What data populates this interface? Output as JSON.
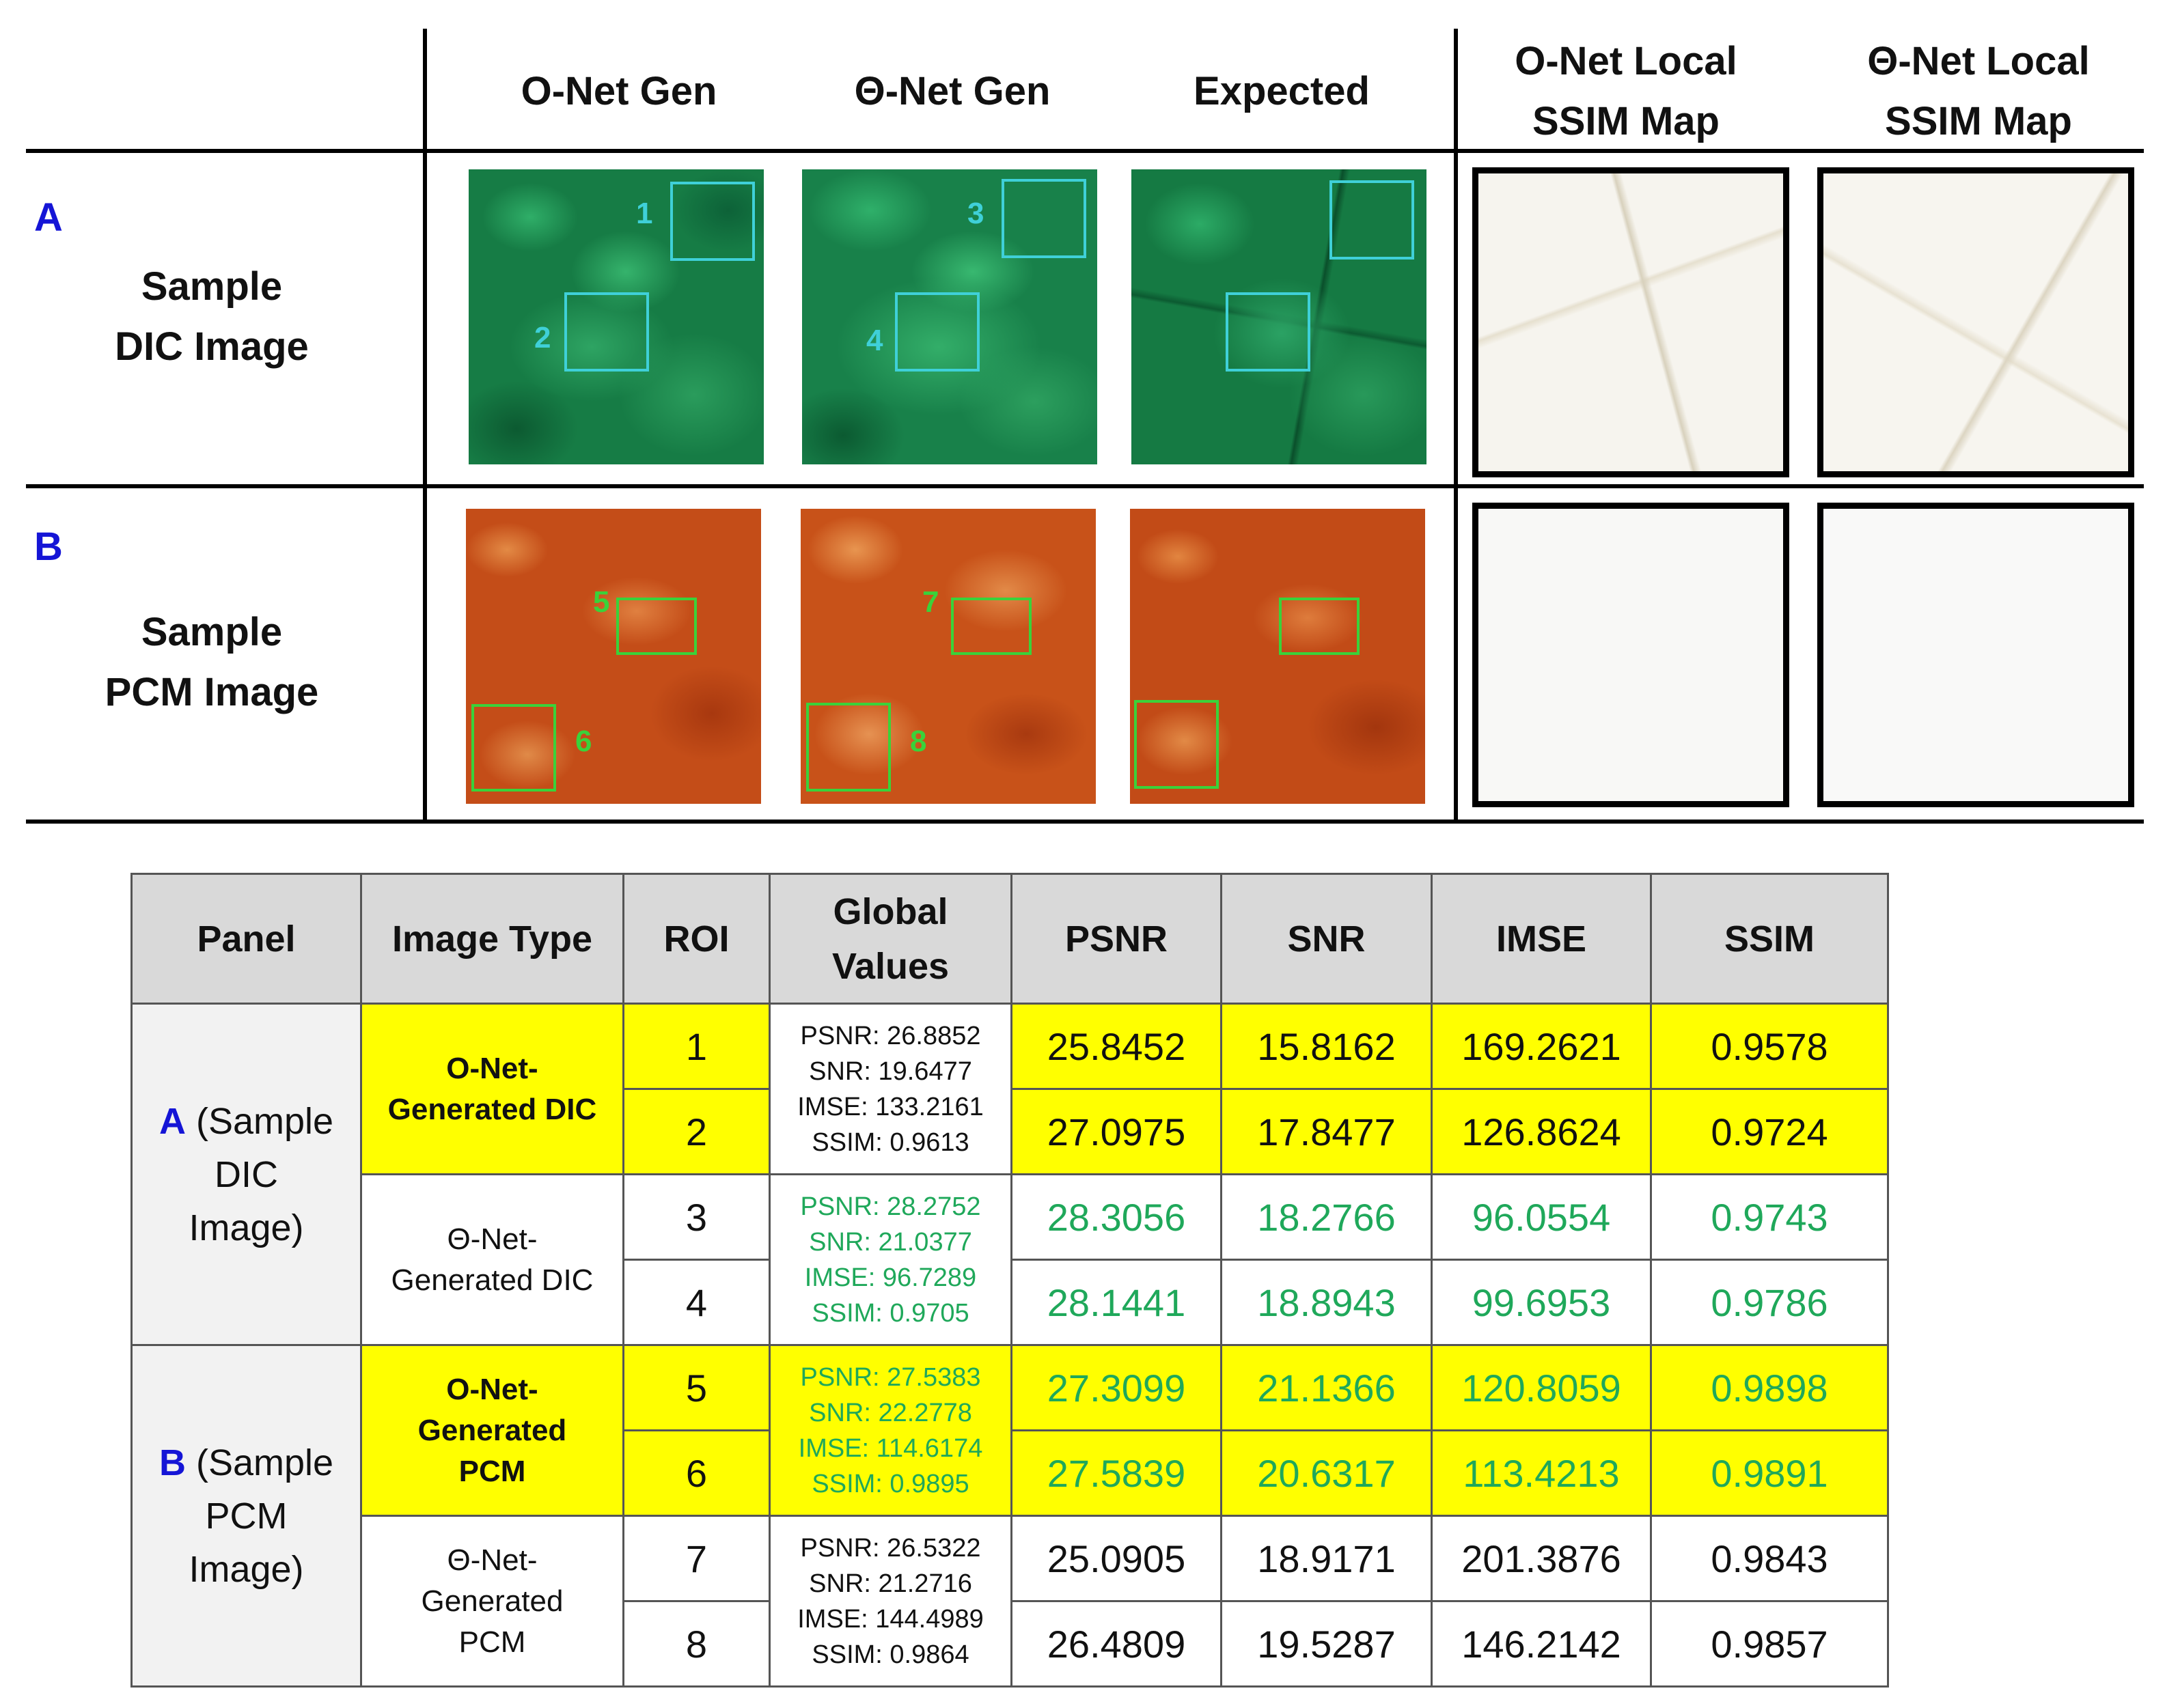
{
  "figure": {
    "col_headers": [
      "O-Net Gen",
      "Θ-Net Gen",
      "Expected",
      "O-Net Local\nSSIM Map",
      "Θ-Net Local\nSSIM Map"
    ],
    "col_o_net_gen": "O-Net Gen",
    "col_theta_net_gen": "Θ-Net Gen",
    "col_expected": "Expected",
    "col_o_ssim_1": "O-Net Local",
    "col_o_ssim_2": "SSIM Map",
    "col_t_ssim_1": "Θ-Net Local",
    "col_t_ssim_2": "SSIM Map",
    "row_a": {
      "letter": "A",
      "label_1": "Sample",
      "label_2": "DIC Image"
    },
    "row_b": {
      "letter": "B",
      "label_1": "Sample",
      "label_2": "PCM Image"
    },
    "roi_labels": [
      "1",
      "2",
      "3",
      "4",
      "5",
      "6",
      "7",
      "8"
    ],
    "colors": {
      "dic_green": "#1a8a4e",
      "pcm_orange": "#c9511b",
      "roi_cyan": "#3fd0d8",
      "roi_green": "#3ad23a",
      "letter_blue": "#1515d6"
    }
  },
  "table": {
    "headers": {
      "panel": "Panel",
      "image_type": "Image Type",
      "roi": "ROI",
      "global_1": "Global",
      "global_2": "Values",
      "psnr": "PSNR",
      "snr": "SNR",
      "imse": "IMSE",
      "ssim": "SSIM"
    },
    "panel_a": {
      "letter": "A",
      "text_1": " (Sample",
      "text_2": "DIC",
      "text_3": "Image)"
    },
    "panel_b": {
      "letter": "B",
      "text_1": " (Sample",
      "text_2": "PCM",
      "text_3": "Image)"
    },
    "groups": [
      {
        "type_1": "O-Net-",
        "type_2": "Generated DIC",
        "type_3": "",
        "global": [
          "PSNR: 26.8852",
          "SNR: 19.6477",
          "IMSE: 133.2161",
          "SSIM: 0.9613"
        ],
        "rows": [
          {
            "roi": "1",
            "psnr": "25.8452",
            "snr": "15.8162",
            "imse": "169.2621",
            "ssim": "0.9578"
          },
          {
            "roi": "2",
            "psnr": "27.0975",
            "snr": "17.8477",
            "imse": "126.8624",
            "ssim": "0.9724"
          }
        ]
      },
      {
        "type_1": "Θ-Net-",
        "type_2": "Generated DIC",
        "type_3": "",
        "global": [
          "PSNR: 28.2752",
          "SNR: 21.0377",
          "IMSE: 96.7289",
          "SSIM: 0.9705"
        ],
        "rows": [
          {
            "roi": "3",
            "psnr": "28.3056",
            "snr": "18.2766",
            "imse": "96.0554",
            "ssim": "0.9743"
          },
          {
            "roi": "4",
            "psnr": "28.1441",
            "snr": "18.8943",
            "imse": "99.6953",
            "ssim": "0.9786"
          }
        ]
      },
      {
        "type_1": "O-Net-",
        "type_2": "Generated",
        "type_3": "PCM",
        "global": [
          "PSNR: 27.5383",
          "SNR: 22.2778",
          "IMSE: 114.6174",
          "SSIM: 0.9895"
        ],
        "rows": [
          {
            "roi": "5",
            "psnr": "27.3099",
            "snr": "21.1366",
            "imse": "120.8059",
            "ssim": "0.9898"
          },
          {
            "roi": "6",
            "psnr": "27.5839",
            "snr": "20.6317",
            "imse": "113.4213",
            "ssim": "0.9891"
          }
        ]
      },
      {
        "type_1": "Θ-Net-",
        "type_2": "Generated",
        "type_3": "PCM",
        "global": [
          "PSNR: 26.5322",
          "SNR: 21.2716",
          "IMSE: 144.4989",
          "SSIM: 0.9864"
        ],
        "rows": [
          {
            "roi": "7",
            "psnr": "25.0905",
            "snr": "18.9171",
            "imse": "201.3876",
            "ssim": "0.9843"
          },
          {
            "roi": "8",
            "psnr": "26.4809",
            "snr": "19.5287",
            "imse": "146.2142",
            "ssim": "0.9857"
          }
        ]
      }
    ],
    "colors": {
      "highlight_yellow": "#ffff00",
      "best_green": "#1fa85a",
      "header_gray": "#d9d9d9"
    }
  }
}
